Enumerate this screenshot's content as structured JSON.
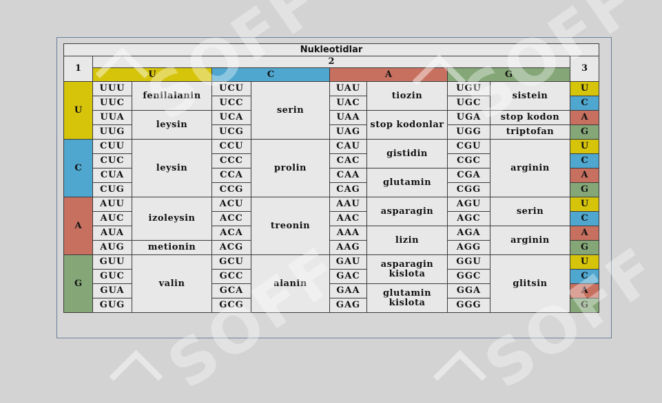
{
  "header": {
    "title": "Nukleotidlar",
    "col1": "1",
    "col2": "2",
    "col3": "3"
  },
  "colors": {
    "U": "#d6c40a",
    "C": "#4fa7cf",
    "A": "#c87060",
    "G": "#85a778"
  },
  "second_bases": [
    "U",
    "C",
    "A",
    "G"
  ],
  "first_bases": [
    "U",
    "C",
    "A",
    "G"
  ],
  "third_bases": [
    "U",
    "C",
    "A",
    "G",
    "U",
    "C",
    "A",
    "G",
    "U",
    "C",
    "A",
    "G",
    "U",
    "C",
    "A",
    "G"
  ],
  "codons": [
    [
      "UUU",
      "UCU",
      "UAU",
      "UGU"
    ],
    [
      "UUC",
      "UCC",
      "UAC",
      "UGC"
    ],
    [
      "UUA",
      "UCA",
      "UAA",
      "UGA"
    ],
    [
      "UUG",
      "UCG",
      "UAG",
      "UGG"
    ],
    [
      "CUU",
      "CCU",
      "CAU",
      "CGU"
    ],
    [
      "CUC",
      "CCC",
      "CAC",
      "CGC"
    ],
    [
      "CUA",
      "CCA",
      "CAA",
      "CGA"
    ],
    [
      "CUG",
      "CCG",
      "CAG",
      "CGG"
    ],
    [
      "AUU",
      "ACU",
      "AAU",
      "AGU"
    ],
    [
      "AUC",
      "ACC",
      "AAC",
      "AGC"
    ],
    [
      "AUA",
      "ACA",
      "AAA",
      "AGA"
    ],
    [
      "AUG",
      "ACG",
      "AAG",
      "AGG"
    ],
    [
      "GUU",
      "GCU",
      "GAU",
      "GGU"
    ],
    [
      "GUC",
      "GCC",
      "GAC",
      "GGC"
    ],
    [
      "GUA",
      "GCA",
      "GAA",
      "GGA"
    ],
    [
      "GUG",
      "GCG",
      "GAG",
      "GGG"
    ]
  ],
  "amino": {
    "U": [
      "fenilalanin",
      "leysin"
    ],
    "Cser": "serin",
    "Atyr": "tiozin",
    "Astop": "stop kodonlar",
    "Gcys": "sistein",
    "Gstop": "stop kodon",
    "Gtrp": "triptofan",
    "Cleu": "leysin",
    "Cpro": "prolin",
    "Chis": "gistidin",
    "Cgln": "glutamin",
    "Carg": "arginin",
    "Aile": "izoleysin",
    "Amet": "metionin",
    "Athr": "treonin",
    "Aasn": "asparagin",
    "Alys": "lizin",
    "Aser": "serin",
    "Aarg": "arginin",
    "Gval": "valin",
    "Gala": "alanin",
    "Gasp": "asparagin kislota",
    "Gglu": "glutamin kislota",
    "Ggly": "glitsin"
  },
  "watermark": "SOFF"
}
